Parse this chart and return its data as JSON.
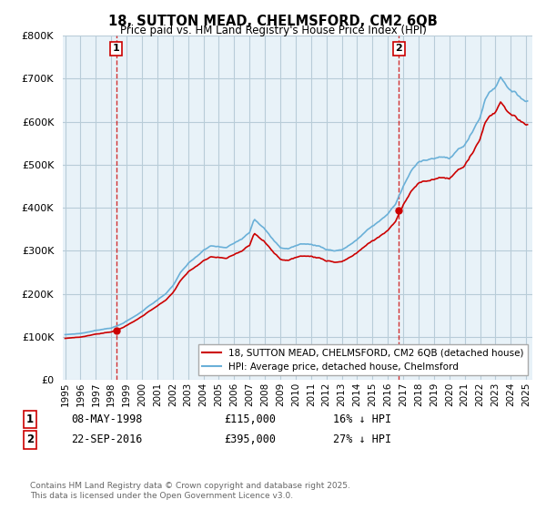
{
  "title1": "18, SUTTON MEAD, CHELMSFORD, CM2 6QB",
  "title2": "Price paid vs. HM Land Registry's House Price Index (HPI)",
  "legend_label1": "18, SUTTON MEAD, CHELMSFORD, CM2 6QB (detached house)",
  "legend_label2": "HPI: Average price, detached house, Chelmsford",
  "marker1_date": "08-MAY-1998",
  "marker1_price": "£115,000",
  "marker1_hpi": "16% ↓ HPI",
  "marker2_date": "22-SEP-2016",
  "marker2_price": "£395,000",
  "marker2_hpi": "27% ↓ HPI",
  "footnote": "Contains HM Land Registry data © Crown copyright and database right 2025.\nThis data is licensed under the Open Government Licence v3.0.",
  "color_red": "#cc0000",
  "color_blue": "#6ab0d8",
  "color_vline": "#cc0000",
  "plot_bg": "#e8f2f8",
  "ylim_max": 800000,
  "ylim_min": 0,
  "background_color": "#ffffff",
  "grid_color": "#b8ccd8"
}
